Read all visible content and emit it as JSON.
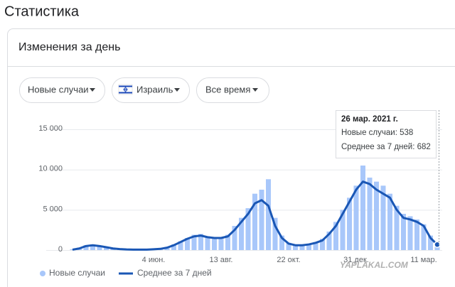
{
  "page": {
    "heading": "Статистика",
    "card_title": "Изменения за день",
    "buttons": [
      "Новые случаи",
      "Израиль",
      "Все время"
    ],
    "tooltip": {
      "date": "26 мар. 2021 г.",
      "lines": [
        "Новые случаи: 538",
        "Среднее за 7 дней: 682"
      ]
    },
    "watermark": "YAPLAKAL.COM"
  },
  "chart_data": {
    "type": "bar-line",
    "categories": [
      null,
      null,
      null,
      null,
      null,
      null,
      null,
      null,
      null,
      null,
      null,
      null,
      "4 июн.",
      null,
      null,
      null,
      null,
      null,
      null,
      null,
      null,
      null,
      "13 авг.",
      null,
      null,
      null,
      null,
      null,
      null,
      null,
      null,
      null,
      "22 окт.",
      null,
      null,
      null,
      null,
      null,
      null,
      null,
      null,
      null,
      "31 дек.",
      null,
      null,
      null,
      null,
      null,
      null,
      null,
      null,
      null,
      "11 мар.",
      null,
      null
    ],
    "series": [
      {
        "name": "Новые случаи",
        "type": "bar",
        "color": "#a8c7fa",
        "values": [
          100,
          300,
          600,
          700,
          550,
          350,
          200,
          120,
          80,
          60,
          50,
          70,
          120,
          200,
          400,
          700,
          1100,
          1500,
          1900,
          2000,
          1700,
          1600,
          1600,
          1900,
          3000,
          4000,
          5200,
          7000,
          7500,
          8800,
          4000,
          1800,
          900,
          700,
          650,
          800,
          1000,
          1400,
          2300,
          3500,
          5000,
          6500,
          8000,
          10500,
          9000,
          8500,
          8000,
          7000,
          5500,
          4500,
          4200,
          3800,
          3200,
          1800,
          538
        ]
      },
      {
        "name": "Среднее за 7 дней",
        "type": "line",
        "color": "#1a57b5",
        "values": [
          50,
          200,
          500,
          600,
          500,
          350,
          200,
          120,
          80,
          60,
          50,
          60,
          100,
          150,
          300,
          600,
          1000,
          1400,
          1700,
          1800,
          1600,
          1500,
          1500,
          1700,
          2500,
          3500,
          4500,
          5800,
          6200,
          5500,
          3000,
          1500,
          800,
          600,
          600,
          700,
          900,
          1200,
          2000,
          3000,
          4500,
          6000,
          7500,
          8500,
          8200,
          7500,
          7000,
          6500,
          5000,
          4000,
          3800,
          3500,
          3000,
          1500,
          682
        ]
      }
    ],
    "ylim": [
      0,
      16000
    ],
    "yticks": [
      0,
      {
        "value": 5000,
        "label": "5 000"
      },
      {
        "value": 10000,
        "label": "10 000"
      },
      {
        "value": 15000,
        "label": "15 000"
      }
    ],
    "grid": true
  }
}
